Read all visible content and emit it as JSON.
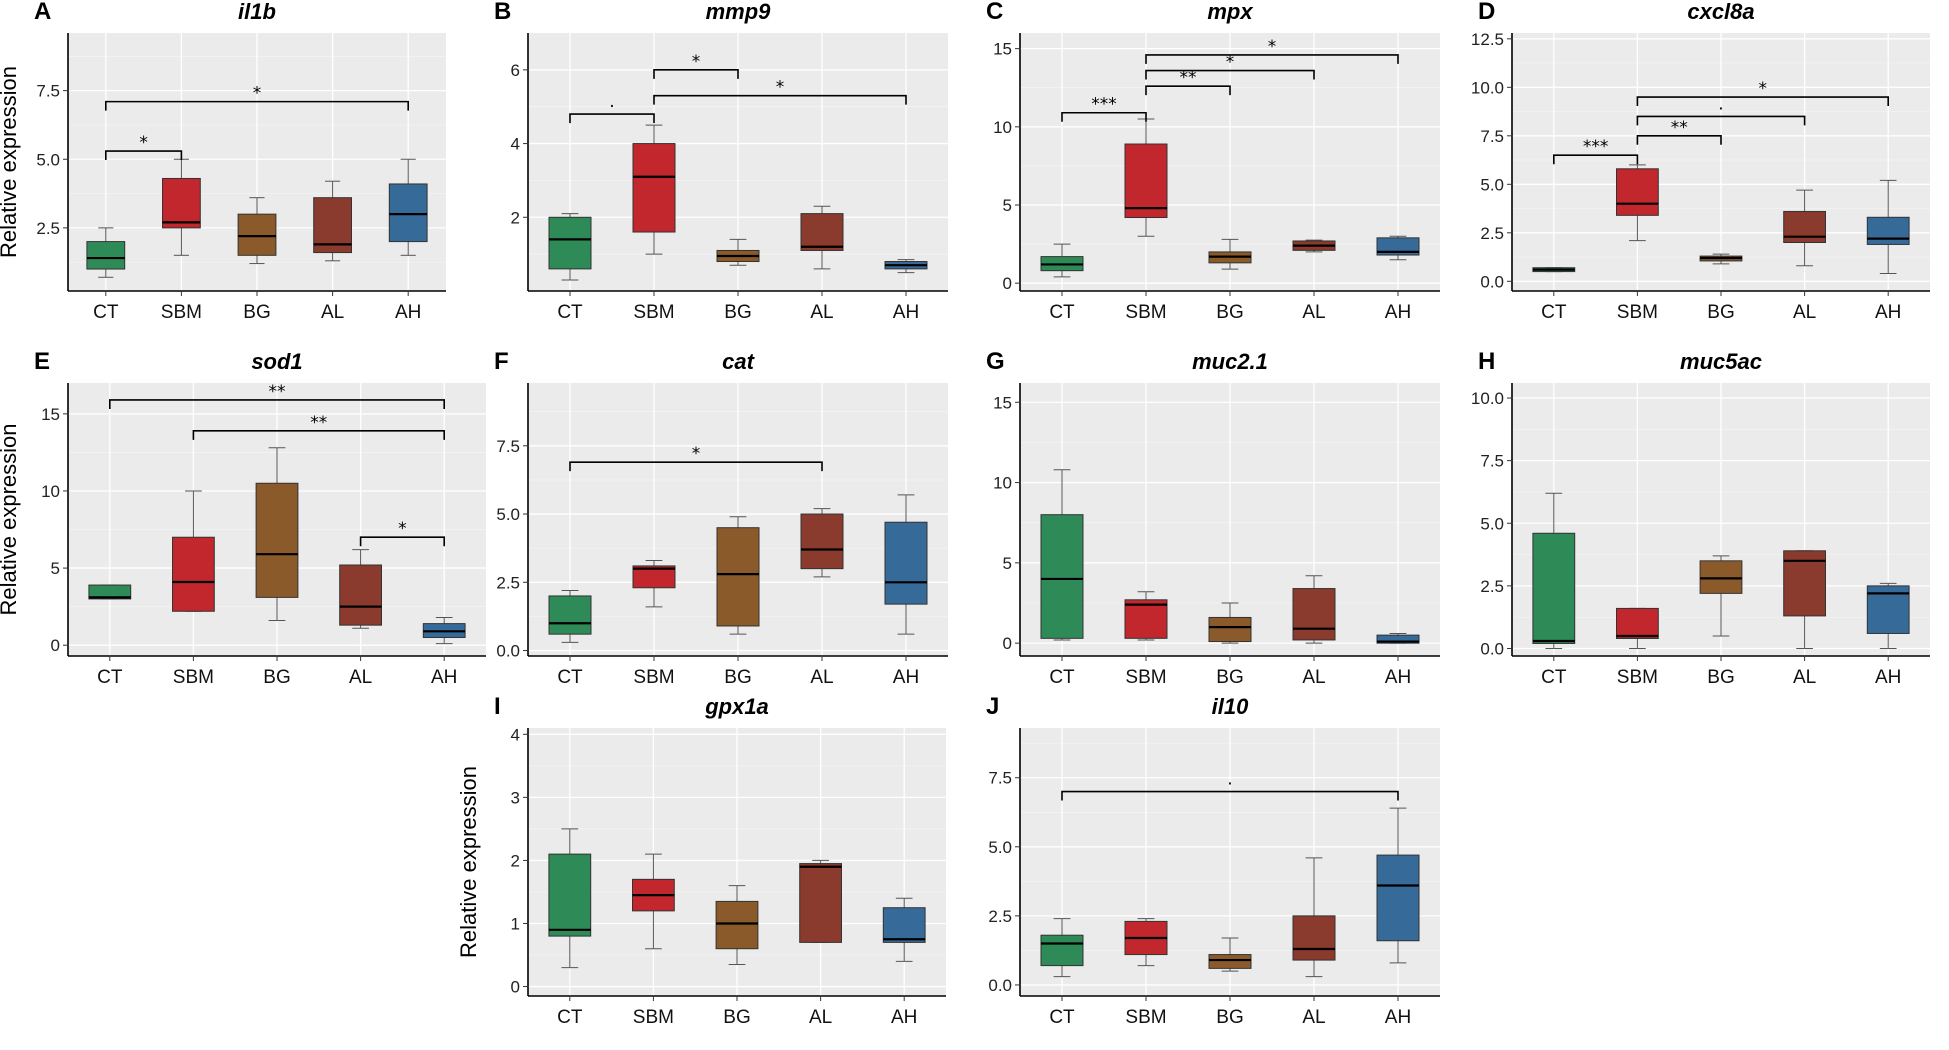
{
  "categories": [
    "CT",
    "SBM",
    "BG",
    "AL",
    "AH"
  ],
  "colors": {
    "CT": "#2e8b57",
    "SBM": "#c1272d",
    "BG": "#8b5a2b",
    "AL": "#8b3a2e",
    "AH": "#366a99"
  },
  "y_axis_label": "Relative expression",
  "chart_data": [
    {
      "type": "box",
      "panel": "A",
      "title": "il1b",
      "ylabel": "Relative expression",
      "categories": [
        "CT",
        "SBM",
        "BG",
        "AL",
        "AH"
      ],
      "yticks": [
        2.5,
        5.0,
        7.5
      ],
      "tick_labels": [
        "2.5",
        "5.0",
        "7.5"
      ],
      "ylim": [
        0.2,
        9.6
      ],
      "boxes": [
        {
          "min": 0.7,
          "q1": 1.0,
          "median": 1.4,
          "q3": 2.0,
          "max": 2.5
        },
        {
          "min": 1.5,
          "q1": 2.5,
          "median": 2.7,
          "q3": 4.3,
          "max": 5.0
        },
        {
          "min": 1.2,
          "q1": 1.5,
          "median": 2.2,
          "q3": 3.0,
          "max": 3.6
        },
        {
          "min": 1.3,
          "q1": 1.6,
          "median": 1.9,
          "q3": 3.6,
          "max": 4.2
        },
        {
          "min": 1.5,
          "q1": 2.0,
          "median": 3.0,
          "q3": 4.1,
          "max": 5.0
        }
      ],
      "significance": [
        {
          "from": "CT",
          "to": "SBM",
          "y": 5.3,
          "label": "*"
        },
        {
          "from": "CT",
          "to": "AH",
          "y": 7.1,
          "label": "*"
        }
      ]
    },
    {
      "type": "box",
      "panel": "B",
      "title": "mmp9",
      "ylabel": "",
      "categories": [
        "CT",
        "SBM",
        "BG",
        "AL",
        "AH"
      ],
      "yticks": [
        2,
        4,
        6
      ],
      "tick_labels": [
        "2",
        "4",
        "6"
      ],
      "ylim": [
        0,
        7.0
      ],
      "boxes": [
        {
          "min": 0.3,
          "q1": 0.6,
          "median": 1.4,
          "q3": 2.0,
          "max": 2.1
        },
        {
          "min": 1.0,
          "q1": 1.6,
          "median": 3.1,
          "q3": 4.0,
          "max": 4.5
        },
        {
          "min": 0.7,
          "q1": 0.8,
          "median": 0.95,
          "q3": 1.1,
          "max": 1.4
        },
        {
          "min": 0.6,
          "q1": 1.1,
          "median": 1.2,
          "q3": 2.1,
          "max": 2.3
        },
        {
          "min": 0.5,
          "q1": 0.6,
          "median": 0.7,
          "q3": 0.8,
          "max": 0.85
        }
      ],
      "significance": [
        {
          "from": "CT",
          "to": "SBM",
          "y": 4.8,
          "label": "·"
        },
        {
          "from": "SBM",
          "to": "BG",
          "y": 6.0,
          "label": "*"
        },
        {
          "from": "SBM",
          "to": "AH",
          "y": 5.3,
          "label": "*"
        }
      ]
    },
    {
      "type": "box",
      "panel": "C",
      "title": "mpx",
      "ylabel": "",
      "categories": [
        "CT",
        "SBM",
        "BG",
        "AL",
        "AH"
      ],
      "yticks": [
        0,
        5,
        10,
        15
      ],
      "tick_labels": [
        "0",
        "5",
        "10",
        "15"
      ],
      "ylim": [
        -0.5,
        16
      ],
      "boxes": [
        {
          "min": 0.4,
          "q1": 0.8,
          "median": 1.2,
          "q3": 1.7,
          "max": 2.5
        },
        {
          "min": 3.0,
          "q1": 4.2,
          "median": 4.8,
          "q3": 8.9,
          "max": 10.5
        },
        {
          "min": 0.9,
          "q1": 1.3,
          "median": 1.7,
          "q3": 2.0,
          "max": 2.8
        },
        {
          "min": 2.0,
          "q1": 2.1,
          "median": 2.4,
          "q3": 2.7,
          "max": 2.75
        },
        {
          "min": 1.5,
          "q1": 1.8,
          "median": 2.0,
          "q3": 2.9,
          "max": 3.0
        }
      ],
      "significance": [
        {
          "from": "CT",
          "to": "SBM",
          "y": 10.9,
          "label": "***"
        },
        {
          "from": "SBM",
          "to": "BG",
          "y": 12.6,
          "label": "**"
        },
        {
          "from": "SBM",
          "to": "AL",
          "y": 13.6,
          "label": "*"
        },
        {
          "from": "SBM",
          "to": "AH",
          "y": 14.6,
          "label": "*"
        }
      ]
    },
    {
      "type": "box",
      "panel": "D",
      "title": "cxcl8a",
      "ylabel": "",
      "categories": [
        "CT",
        "SBM",
        "BG",
        "AL",
        "AH"
      ],
      "yticks": [
        0.0,
        2.5,
        5.0,
        7.5,
        10.0,
        12.5
      ],
      "tick_labels": [
        "0.0",
        "2.5",
        "5.0",
        "7.5",
        "10.0",
        "12.5"
      ],
      "ylim": [
        -0.5,
        12.8
      ],
      "boxes": [
        {
          "min": 0.5,
          "q1": 0.5,
          "median": 0.6,
          "q3": 0.7,
          "max": 0.7
        },
        {
          "min": 2.1,
          "q1": 3.4,
          "median": 4.0,
          "q3": 5.8,
          "max": 6.0
        },
        {
          "min": 0.9,
          "q1": 1.05,
          "median": 1.2,
          "q3": 1.3,
          "max": 1.4
        },
        {
          "min": 0.8,
          "q1": 2.0,
          "median": 2.3,
          "q3": 3.6,
          "max": 4.7
        },
        {
          "min": 0.4,
          "q1": 1.9,
          "median": 2.2,
          "q3": 3.3,
          "max": 5.2
        }
      ],
      "significance": [
        {
          "from": "CT",
          "to": "SBM",
          "y": 6.5,
          "label": "***"
        },
        {
          "from": "SBM",
          "to": "BG",
          "y": 7.5,
          "label": "**"
        },
        {
          "from": "SBM",
          "to": "AL",
          "y": 8.5,
          "label": "·"
        },
        {
          "from": "SBM",
          "to": "AH",
          "y": 9.5,
          "label": "*"
        }
      ]
    },
    {
      "type": "box",
      "panel": "E",
      "title": "sod1",
      "ylabel": "Relative expression",
      "categories": [
        "CT",
        "SBM",
        "BG",
        "AL",
        "AH"
      ],
      "yticks": [
        0,
        5,
        10,
        15
      ],
      "tick_labels": [
        "0",
        "5",
        "10",
        "15"
      ],
      "ylim": [
        -0.7,
        17
      ],
      "boxes": [
        {
          "min": 3.0,
          "q1": 3.0,
          "median": 3.1,
          "q3": 3.9,
          "max": 3.9
        },
        {
          "min": 2.2,
          "q1": 2.2,
          "median": 4.1,
          "q3": 7.0,
          "max": 10.0
        },
        {
          "min": 1.6,
          "q1": 3.1,
          "median": 5.9,
          "q3": 10.5,
          "max": 12.8
        },
        {
          "min": 1.1,
          "q1": 1.3,
          "median": 2.5,
          "q3": 5.2,
          "max": 6.2
        },
        {
          "min": 0.1,
          "q1": 0.5,
          "median": 0.9,
          "q3": 1.4,
          "max": 1.8
        }
      ],
      "significance": [
        {
          "from": "AL",
          "to": "AH",
          "y": 7.0,
          "label": "*"
        },
        {
          "from": "SBM",
          "to": "AH",
          "y": 13.9,
          "label": "**"
        },
        {
          "from": "CT",
          "to": "AH",
          "y": 15.9,
          "label": "**"
        }
      ]
    },
    {
      "type": "box",
      "panel": "F",
      "title": "cat",
      "ylabel": "",
      "categories": [
        "CT",
        "SBM",
        "BG",
        "AL",
        "AH"
      ],
      "yticks": [
        0.0,
        2.5,
        5.0,
        7.5
      ],
      "tick_labels": [
        "0.0",
        "2.5",
        "5.0",
        "7.5"
      ],
      "ylim": [
        -0.2,
        9.8
      ],
      "boxes": [
        {
          "min": 0.3,
          "q1": 0.6,
          "median": 1.0,
          "q3": 2.0,
          "max": 2.2
        },
        {
          "min": 1.6,
          "q1": 2.3,
          "median": 3.0,
          "q3": 3.1,
          "max": 3.3
        },
        {
          "min": 0.6,
          "q1": 0.9,
          "median": 2.8,
          "q3": 4.5,
          "max": 4.9
        },
        {
          "min": 2.7,
          "q1": 3.0,
          "median": 3.7,
          "q3": 5.0,
          "max": 5.2
        },
        {
          "min": 0.6,
          "q1": 1.7,
          "median": 2.5,
          "q3": 4.7,
          "max": 5.7
        }
      ],
      "significance": [
        {
          "from": "CT",
          "to": "AL",
          "y": 6.9,
          "label": "*"
        }
      ]
    },
    {
      "type": "box",
      "panel": "G",
      "title": "muc2.1",
      "ylabel": "",
      "categories": [
        "CT",
        "SBM",
        "BG",
        "AL",
        "AH"
      ],
      "yticks": [
        0,
        5,
        10,
        15
      ],
      "tick_labels": [
        "0",
        "5",
        "10",
        "15"
      ],
      "ylim": [
        -0.8,
        16.2
      ],
      "boxes": [
        {
          "min": 0.2,
          "q1": 0.3,
          "median": 4.0,
          "q3": 8.0,
          "max": 10.8
        },
        {
          "min": 0.2,
          "q1": 0.3,
          "median": 2.4,
          "q3": 2.7,
          "max": 3.2
        },
        {
          "min": 0.0,
          "q1": 0.1,
          "median": 1.0,
          "q3": 1.6,
          "max": 2.5
        },
        {
          "min": 0.0,
          "q1": 0.2,
          "median": 0.9,
          "q3": 3.4,
          "max": 4.2
        },
        {
          "min": 0.0,
          "q1": 0.0,
          "median": 0.1,
          "q3": 0.5,
          "max": 0.6
        }
      ],
      "significance": []
    },
    {
      "type": "box",
      "panel": "H",
      "title": "muc5ac",
      "ylabel": "",
      "categories": [
        "CT",
        "SBM",
        "BG",
        "AL",
        "AH"
      ],
      "yticks": [
        0.0,
        2.5,
        5.0,
        7.5,
        10.0
      ],
      "tick_labels": [
        "0.0",
        "2.5",
        "5.0",
        "7.5",
        "10.0"
      ],
      "ylim": [
        -0.3,
        10.6
      ],
      "boxes": [
        {
          "min": 0.0,
          "q1": 0.2,
          "median": 0.3,
          "q3": 4.6,
          "max": 6.2
        },
        {
          "min": 0.0,
          "q1": 0.4,
          "median": 0.5,
          "q3": 1.6,
          "max": 1.6
        },
        {
          "min": 0.5,
          "q1": 2.2,
          "median": 2.8,
          "q3": 3.5,
          "max": 3.7
        },
        {
          "min": 0.0,
          "q1": 1.3,
          "median": 3.5,
          "q3": 3.9,
          "max": 3.9
        },
        {
          "min": 0.0,
          "q1": 0.6,
          "median": 2.2,
          "q3": 2.5,
          "max": 2.6
        }
      ],
      "significance": []
    },
    {
      "type": "box",
      "panel": "I",
      "title": "gpx1a",
      "ylabel": "Relative expression",
      "categories": [
        "CT",
        "SBM",
        "BG",
        "AL",
        "AH"
      ],
      "yticks": [
        0,
        1,
        2,
        3,
        4
      ],
      "tick_labels": [
        "0",
        "1",
        "2",
        "3",
        "4"
      ],
      "ylim": [
        -0.15,
        4.1
      ],
      "boxes": [
        {
          "min": 0.3,
          "q1": 0.8,
          "median": 0.9,
          "q3": 2.1,
          "max": 2.5
        },
        {
          "min": 0.6,
          "q1": 1.2,
          "median": 1.45,
          "q3": 1.7,
          "max": 2.1
        },
        {
          "min": 0.35,
          "q1": 0.6,
          "median": 1.0,
          "q3": 1.35,
          "max": 1.6
        },
        {
          "min": 0.7,
          "q1": 0.7,
          "median": 1.9,
          "q3": 1.95,
          "max": 2.0
        },
        {
          "min": 0.4,
          "q1": 0.7,
          "median": 0.75,
          "q3": 1.25,
          "max": 1.4
        }
      ],
      "significance": []
    },
    {
      "type": "box",
      "panel": "J",
      "title": "il10",
      "ylabel": "",
      "categories": [
        "CT",
        "SBM",
        "BG",
        "AL",
        "AH"
      ],
      "yticks": [
        0.0,
        2.5,
        5.0,
        7.5
      ],
      "tick_labels": [
        "0.0",
        "2.5",
        "5.0",
        "7.5"
      ],
      "ylim": [
        -0.4,
        9.3
      ],
      "boxes": [
        {
          "min": 0.3,
          "q1": 0.7,
          "median": 1.5,
          "q3": 1.8,
          "max": 2.4
        },
        {
          "min": 0.7,
          "q1": 1.1,
          "median": 1.7,
          "q3": 2.3,
          "max": 2.4
        },
        {
          "min": 0.5,
          "q1": 0.6,
          "median": 0.9,
          "q3": 1.1,
          "max": 1.7
        },
        {
          "min": 0.3,
          "q1": 0.9,
          "median": 1.3,
          "q3": 2.5,
          "max": 4.6
        },
        {
          "min": 0.8,
          "q1": 1.6,
          "median": 3.6,
          "q3": 4.7,
          "max": 6.4
        }
      ],
      "significance": [
        {
          "from": "CT",
          "to": "AH",
          "y": 7.0,
          "label": "·"
        }
      ]
    }
  ]
}
